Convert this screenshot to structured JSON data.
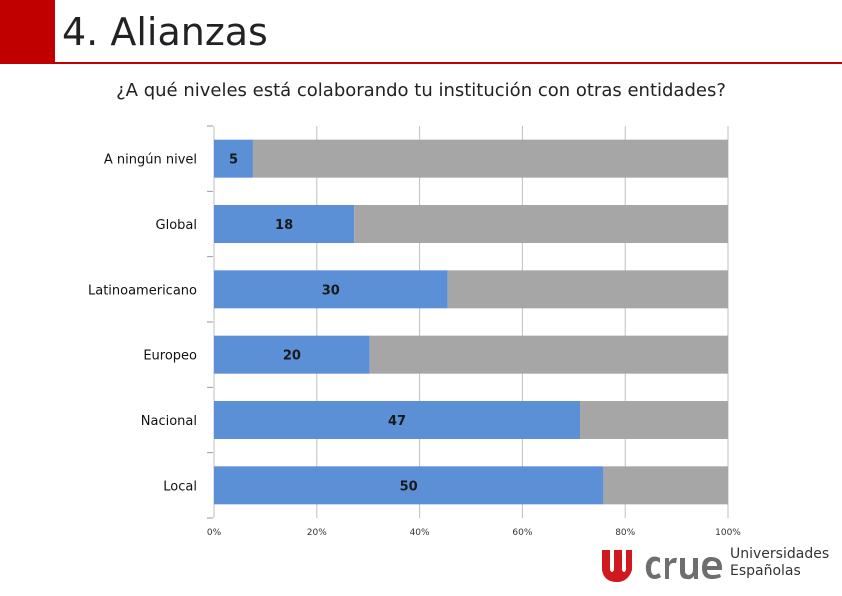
{
  "slide": {
    "title": "4. Alianzas",
    "subtitle": "¿A qué niveles está colaborando tu institución con otras entidades?"
  },
  "logo": {
    "name": "crue",
    "line1": "Universidades",
    "line2": "Españolas",
    "accent": "#d0181f"
  },
  "chart_data": {
    "type": "bar",
    "orientation": "horizontal",
    "stacked": "100%",
    "categories": [
      "A ningún nivel",
      "Global",
      "Latinoamericano",
      "Europeo",
      "Nacional",
      "Local"
    ],
    "series": [
      {
        "values": [
          5,
          18,
          30,
          20,
          47,
          50
        ],
        "color": "#5b8fd6"
      },
      {
        "values": [
          61,
          48,
          36,
          46,
          19,
          16
        ],
        "color": "#a6a6a6"
      }
    ],
    "data_labels": [
      "5",
      "18",
      "30",
      "20",
      "47",
      "50"
    ],
    "x_ticks": [
      "0%",
      "20%",
      "40%",
      "60%",
      "80%",
      "100%"
    ],
    "xlim": [
      0,
      100
    ],
    "grid": true,
    "legend": "none"
  }
}
